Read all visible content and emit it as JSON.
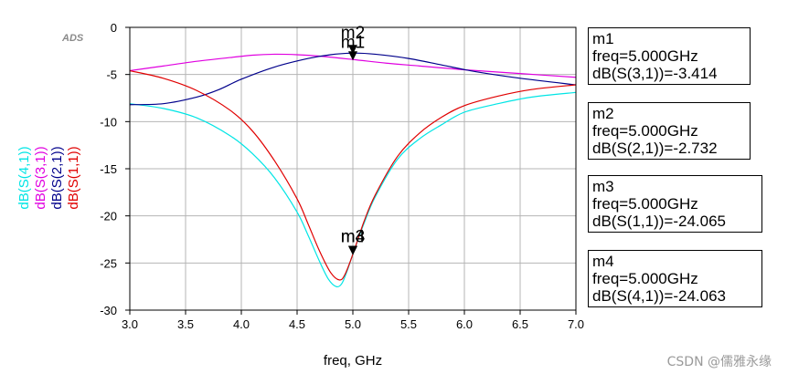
{
  "ads_label": "ADS",
  "watermark": "CSDN @儒雅永缘",
  "chart_data": {
    "type": "line",
    "xlabel": "freq, GHz",
    "xlim": [
      3.0,
      7.0
    ],
    "ylim": [
      -30,
      0
    ],
    "x_ticks": [
      "3.0",
      "3.5",
      "4.0",
      "4.5",
      "5.0",
      "5.5",
      "6.0",
      "6.5",
      "7.0"
    ],
    "y_ticks": [
      "0",
      "-5",
      "-10",
      "-15",
      "-20",
      "-25",
      "-30"
    ],
    "grid": true,
    "y_axis_labels": [
      {
        "text": "dB(S(4,1))",
        "color": "#00e5e5"
      },
      {
        "text": "dB(S(3,1))",
        "color": "#e000e0"
      },
      {
        "text": "dB(S(2,1))",
        "color": "#00008b"
      },
      {
        "text": "dB(S(1,1))",
        "color": "#e00000"
      }
    ],
    "series": [
      {
        "name": "dB(S(4,1))",
        "color": "#00e5e5",
        "x": [
          3.0,
          3.3,
          3.6,
          3.9,
          4.1,
          4.3,
          4.5,
          4.6,
          4.7,
          4.78,
          4.85,
          4.9,
          4.95,
          5.0,
          5.1,
          5.2,
          5.4,
          5.6,
          5.8,
          6.0,
          6.3,
          6.6,
          7.0
        ],
        "y": [
          -8.1,
          -8.6,
          -9.6,
          -11.5,
          -13.4,
          -16.0,
          -19.6,
          -22.1,
          -24.8,
          -26.7,
          -27.5,
          -27.2,
          -25.8,
          -24.06,
          -20.8,
          -18.0,
          -14.0,
          -11.8,
          -10.3,
          -9.0,
          -8.1,
          -7.4,
          -6.9
        ]
      },
      {
        "name": "dB(S(3,1))",
        "color": "#e000e0",
        "x": [
          3.0,
          3.3,
          3.6,
          3.9,
          4.1,
          4.3,
          4.5,
          4.7,
          5.0,
          5.3,
          5.6,
          6.0,
          6.5,
          7.0
        ],
        "y": [
          -4.6,
          -4.1,
          -3.6,
          -3.2,
          -2.95,
          -2.85,
          -2.9,
          -3.05,
          -3.41,
          -3.8,
          -4.1,
          -4.5,
          -4.9,
          -5.3
        ]
      },
      {
        "name": "dB(S(2,1))",
        "color": "#00008b",
        "x": [
          3.0,
          3.3,
          3.6,
          3.8,
          4.0,
          4.3,
          4.6,
          4.8,
          5.0,
          5.2,
          5.5,
          5.8,
          6.1,
          6.5,
          7.0
        ],
        "y": [
          -8.2,
          -8.1,
          -7.4,
          -6.6,
          -5.5,
          -4.2,
          -3.3,
          -2.9,
          -2.73,
          -2.85,
          -3.3,
          -4.0,
          -4.7,
          -5.4,
          -6.1
        ]
      },
      {
        "name": "dB(S(1,1))",
        "color": "#e00000",
        "x": [
          3.0,
          3.3,
          3.6,
          3.9,
          4.1,
          4.3,
          4.5,
          4.6,
          4.7,
          4.8,
          4.88,
          4.93,
          5.0,
          5.1,
          5.2,
          5.4,
          5.6,
          5.8,
          6.0,
          6.3,
          6.6,
          7.0
        ],
        "y": [
          -4.6,
          -5.4,
          -6.7,
          -8.8,
          -11.0,
          -14.2,
          -18.2,
          -20.9,
          -23.7,
          -26.0,
          -26.8,
          -26.2,
          -24.07,
          -20.6,
          -17.8,
          -13.7,
          -11.2,
          -9.5,
          -8.3,
          -7.3,
          -6.6,
          -6.1
        ]
      }
    ],
    "markers": [
      {
        "name": "m1",
        "freq_text": "freq=5.000GHz",
        "value_text": "dB(S(3,1))=-3.414",
        "x": 5.0,
        "y": -3.414
      },
      {
        "name": "m2",
        "freq_text": "freq=5.000GHz",
        "value_text": "dB(S(2,1))=-2.732",
        "x": 5.0,
        "y": -2.732
      },
      {
        "name": "m3",
        "freq_text": "freq=5.000GHz",
        "value_text": "dB(S(1,1))=-24.065",
        "x": 5.0,
        "y": -24.065
      },
      {
        "name": "m4",
        "freq_text": "freq=5.000GHz",
        "value_text": "dB(S(4,1))=-24.063",
        "x": 5.0,
        "y": -24.063
      }
    ],
    "marker_labels": [
      {
        "text": "m2",
        "x": 5.0,
        "y": -2.732,
        "position": "above"
      },
      {
        "text": "m1",
        "x": 5.0,
        "y": -3.414,
        "position": "above"
      },
      {
        "text": "m3",
        "x": 5.0,
        "y": -24.065,
        "position": "above"
      },
      {
        "text": "m4",
        "x": 5.0,
        "y": -24.063,
        "position": "above"
      }
    ]
  }
}
